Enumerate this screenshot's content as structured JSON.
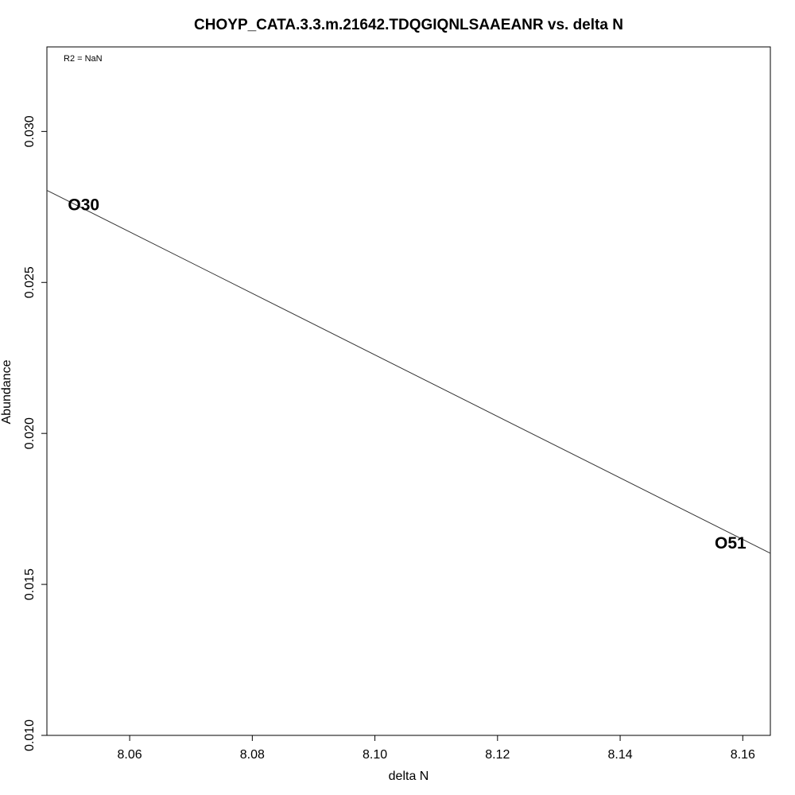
{
  "chart_data": {
    "type": "scatter",
    "title": "CHOYP_CATA.3.3.m.21642.TDQGIQNLSAAEANR vs. delta N",
    "xlabel": "delta N",
    "ylabel": "Abundance",
    "annotation": "R2 = NaN",
    "xlim": [
      8.0465,
      8.1645
    ],
    "ylim": [
      0.01,
      0.0328
    ],
    "x_ticks": [
      8.06,
      8.08,
      8.1,
      8.12,
      8.14,
      8.16
    ],
    "x_tick_labels": [
      "8.06",
      "8.08",
      "8.10",
      "8.12",
      "8.14",
      "8.16"
    ],
    "y_ticks": [
      0.01,
      0.015,
      0.02,
      0.025,
      0.03
    ],
    "y_tick_labels": [
      "0.010",
      "0.015",
      "0.020",
      "0.025",
      "0.030"
    ],
    "points": [
      {
        "label": "O30",
        "x": 8.0525,
        "y": 0.0276
      },
      {
        "label": "O51",
        "x": 8.158,
        "y": 0.0164
      }
    ],
    "fit_line": {
      "x": [
        8.0465,
        8.1645
      ],
      "y": [
        0.02805,
        0.01603
      ]
    },
    "grid": false,
    "legend": "none"
  }
}
